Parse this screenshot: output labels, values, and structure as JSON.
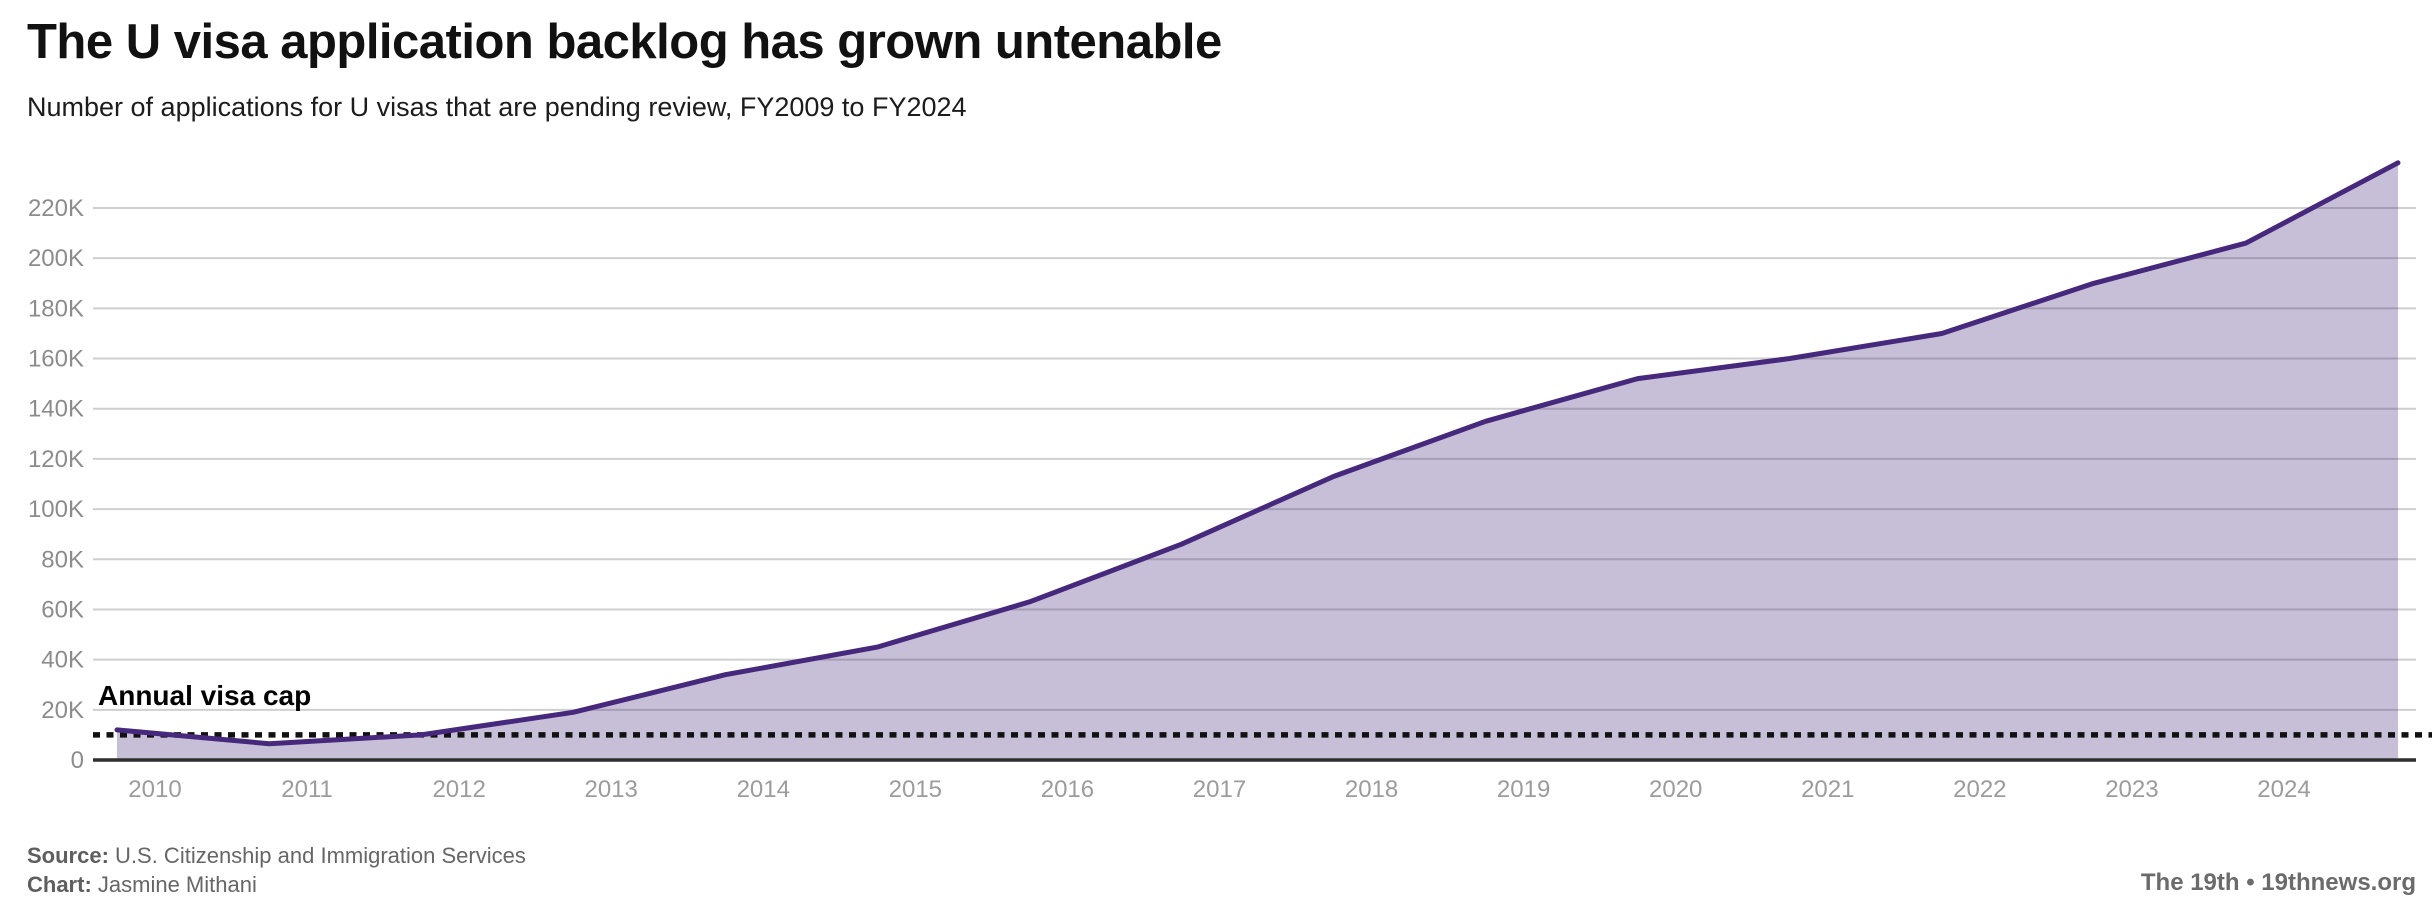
{
  "header": {
    "title": "The U visa application backlog has grown untenable",
    "subtitle": "Number of applications for U visas that are pending review, FY2009 to FY2024"
  },
  "chart_data": {
    "type": "area",
    "title": "The U visa application backlog has grown untenable",
    "series_name": "U visa applications pending review",
    "x": [
      2009,
      2010,
      2011,
      2012,
      2013,
      2014,
      2015,
      2016,
      2017,
      2018,
      2019,
      2020,
      2021,
      2022,
      2023,
      2024
    ],
    "x_unit": "fiscal year (data points plotted at fiscal year end, Sep 30)",
    "values": [
      12000,
      6500,
      10000,
      19000,
      34000,
      45000,
      63000,
      86000,
      113000,
      135000,
      152000,
      160000,
      170000,
      190000,
      206000,
      238000
    ],
    "cap_line": {
      "label": "Annual visa cap",
      "value": 10000,
      "style": "dotted",
      "color": "#111111"
    },
    "y_ticks": [
      {
        "value": 0,
        "label": "0"
      },
      {
        "value": 20000,
        "label": "20K"
      },
      {
        "value": 40000,
        "label": "40K"
      },
      {
        "value": 60000,
        "label": "60K"
      },
      {
        "value": 80000,
        "label": "80K"
      },
      {
        "value": 100000,
        "label": "100K"
      },
      {
        "value": 120000,
        "label": "120K"
      },
      {
        "value": 140000,
        "label": "140K"
      },
      {
        "value": 160000,
        "label": "160K"
      },
      {
        "value": 180000,
        "label": "180K"
      },
      {
        "value": 200000,
        "label": "200K"
      },
      {
        "value": 220000,
        "label": "220K"
      }
    ],
    "x_ticks": [
      {
        "value": 2010,
        "label": "2010"
      },
      {
        "value": 2011,
        "label": "2011"
      },
      {
        "value": 2012,
        "label": "2012"
      },
      {
        "value": 2013,
        "label": "2013"
      },
      {
        "value": 2014,
        "label": "2014"
      },
      {
        "value": 2015,
        "label": "2015"
      },
      {
        "value": 2016,
        "label": "2016"
      },
      {
        "value": 2017,
        "label": "2017"
      },
      {
        "value": 2018,
        "label": "2018"
      },
      {
        "value": 2019,
        "label": "2019"
      },
      {
        "value": 2020,
        "label": "2020"
      },
      {
        "value": 2021,
        "label": "2021"
      },
      {
        "value": 2022,
        "label": "2022"
      },
      {
        "value": 2023,
        "label": "2023"
      },
      {
        "value": 2024,
        "label": "2024"
      }
    ],
    "ylim": [
      0,
      243000
    ],
    "grid": "horizontal",
    "legend": "none",
    "colors": {
      "line": "#46287C",
      "fill": "rgba(70,40,124,0.30)",
      "gridline": "#cfcfcf",
      "axis": "#2e2e2e",
      "cap_line": "#111111"
    }
  },
  "footer": {
    "source_label": "Source:",
    "source_text": " U.S. Citizenship and Immigration Services",
    "chart_label": "Chart:",
    "chart_text": " Jasmine Mithani",
    "brand_line": "The 19th • 19thnews.org"
  }
}
